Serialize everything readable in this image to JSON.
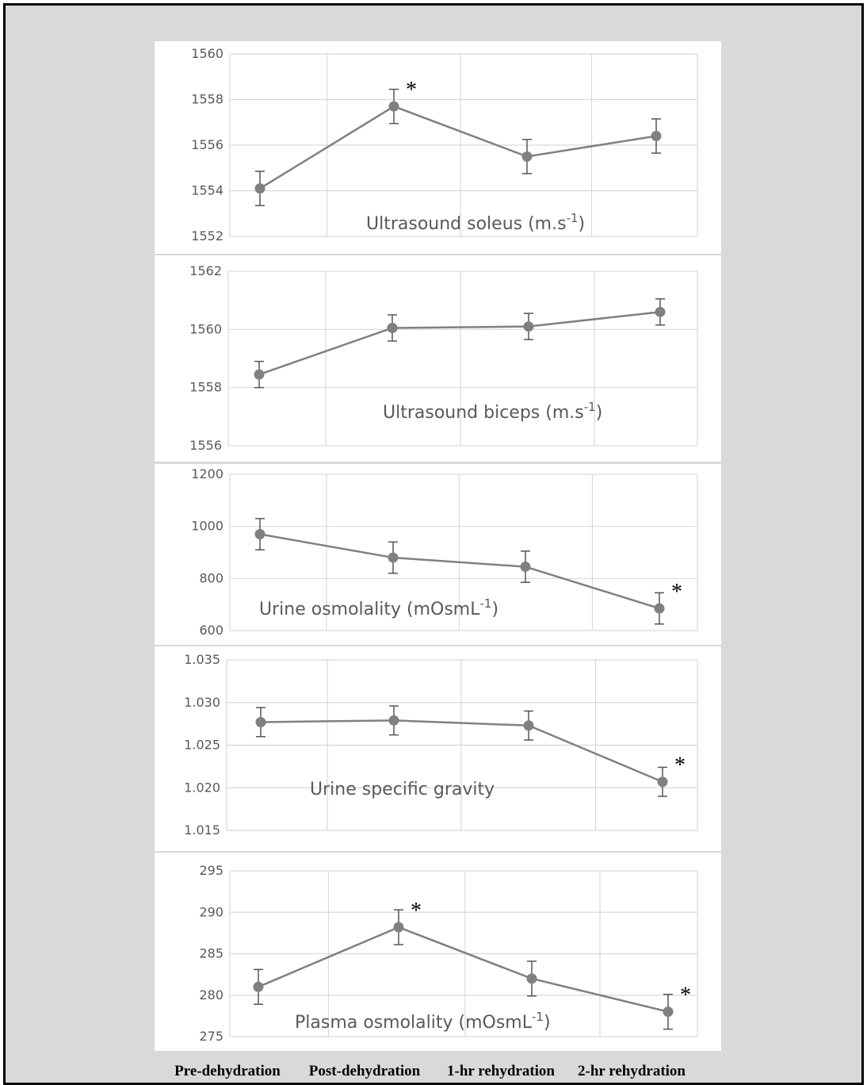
{
  "chart_data": [
    {
      "type": "line",
      "title": "Ultrasound soleus (m.s-1)",
      "title_main": "Ultrasound soleus (m.s",
      "title_sup": "-1",
      "title_close": ")",
      "categories": [
        "Pre-dehydration",
        "Post-dehydration",
        "1-hr rehydration",
        "2-hr rehydration"
      ],
      "values": [
        1554.1,
        1557.7,
        1555.5,
        1556.4
      ],
      "errors": [
        0.75,
        0.75,
        0.75,
        0.75
      ],
      "significance": [
        false,
        true,
        false,
        false
      ],
      "yticks": [
        "1552",
        "1554",
        "1556",
        "1558",
        "1560"
      ],
      "ylim": [
        1552,
        1560
      ]
    },
    {
      "type": "line",
      "title": "Ultrasound biceps (m.s-1)",
      "title_main": "Ultrasound biceps   (m.s",
      "title_sup": "-1",
      "title_close": ")",
      "categories": [
        "Pre-dehydration",
        "Post-dehydration",
        "1-hr rehydration",
        "2-hr rehydration"
      ],
      "values": [
        1558.45,
        1560.05,
        1560.1,
        1560.6
      ],
      "errors": [
        0.45,
        0.45,
        0.45,
        0.45
      ],
      "significance": [
        false,
        false,
        false,
        false
      ],
      "yticks": [
        "1556",
        "1558",
        "1560",
        "1562"
      ],
      "ylim": [
        1556,
        1562
      ]
    },
    {
      "type": "line",
      "title": "Urine osmolality (mOsmL-1)",
      "title_main": "Urine osmolality (mOsmL",
      "title_sup": "-1",
      "title_close": ")",
      "categories": [
        "Pre-dehydration",
        "Post-dehydration",
        "1-hr rehydration",
        "2-hr rehydration"
      ],
      "values": [
        970,
        880,
        845,
        685
      ],
      "errors": [
        60,
        60,
        60,
        60
      ],
      "significance": [
        false,
        false,
        false,
        true
      ],
      "yticks": [
        "600",
        "800",
        "1000",
        "1200"
      ],
      "ylim": [
        600,
        1200
      ]
    },
    {
      "type": "line",
      "title": "Urine specific gravity",
      "title_main": "Urine specific gravity",
      "title_sup": "",
      "title_close": "",
      "categories": [
        "Pre-dehydration",
        "Post-dehydration",
        "1-hr rehydration",
        "2-hr rehydration"
      ],
      "values": [
        1.0277,
        1.0279,
        1.0273,
        1.0207
      ],
      "errors": [
        0.0017,
        0.0017,
        0.0017,
        0.0017
      ],
      "significance": [
        false,
        false,
        false,
        true
      ],
      "yticks": [
        "1.015",
        "1.020",
        "1.025",
        "1.030",
        "1.035"
      ],
      "ylim": [
        1.015,
        1.035
      ]
    },
    {
      "type": "line",
      "title": "Plasma osmolality (mOsmL-1)",
      "title_main": "Plasma osmolality (mOsmL",
      "title_sup": "-1",
      "title_close": ")",
      "categories": [
        "Pre-dehydration",
        "Post-dehydration",
        "1-hr rehydration",
        "2-hr rehydration"
      ],
      "values": [
        281,
        288.2,
        282,
        278
      ],
      "errors": [
        2.1,
        2.1,
        2.1,
        2.1
      ],
      "significance": [
        false,
        true,
        false,
        true
      ],
      "yticks": [
        "275",
        "280",
        "285",
        "290",
        "295"
      ],
      "ylim": [
        275,
        295
      ]
    }
  ],
  "significance_marker": "*",
  "x_categories": [
    "Pre-dehydration",
    "Post-dehydration",
    "1-hr rehydration",
    "2-hr rehydration"
  ],
  "colors": {
    "line": "#808080",
    "marker": "#808080",
    "grid": "#d9d9d9",
    "frame_bg": "#d9d9d9",
    "panel_bg": "#ffffff",
    "star": "#000000"
  }
}
